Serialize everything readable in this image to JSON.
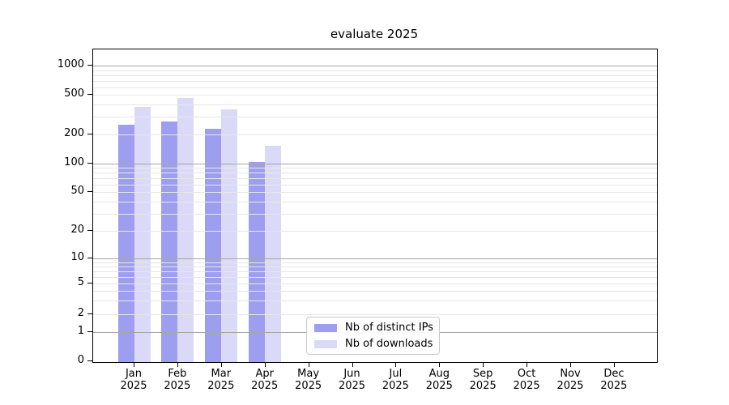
{
  "title": "evaluate 2025",
  "colors": {
    "distinct_ips": "#9e9ef0",
    "downloads": "#dadaf8",
    "grid_major": "#a6a6a6",
    "grid_minor": "#e6e6e6",
    "axis": "#000000",
    "background": "#ffffff"
  },
  "legend": {
    "items": [
      {
        "label": "Nb of distinct IPs",
        "color_key": "distinct_ips"
      },
      {
        "label": "Nb of downloads",
        "color_key": "downloads"
      }
    ]
  },
  "chart_data": {
    "type": "bar",
    "title": "evaluate 2025",
    "categories": [
      "Jan 2025",
      "Feb 2025",
      "Mar 2025",
      "Apr 2025",
      "May 2025",
      "Jun 2025",
      "Jul 2025",
      "Aug 2025",
      "Sep 2025",
      "Oct 2025",
      "Nov 2025",
      "Dec 2025"
    ],
    "series": [
      {
        "name": "Nb of distinct IPs",
        "color_key": "distinct_ips",
        "values": [
          250,
          270,
          228,
          104,
          null,
          null,
          null,
          null,
          null,
          null,
          null,
          null
        ]
      },
      {
        "name": "Nb of downloads",
        "color_key": "downloads",
        "values": [
          380,
          465,
          360,
          152,
          null,
          null,
          null,
          null,
          null,
          null,
          null,
          null
        ]
      }
    ],
    "xlabel": "",
    "ylabel": "",
    "yscale": "symlog",
    "yticks": [
      0,
      1,
      2,
      5,
      10,
      20,
      50,
      100,
      200,
      500,
      1000
    ],
    "ylim": [
      0,
      1500
    ],
    "grid": true,
    "legend_position": "lower center-left"
  }
}
